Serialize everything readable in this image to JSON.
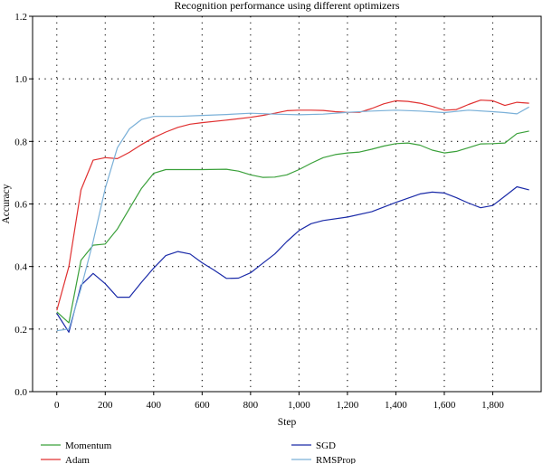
{
  "chart_data": {
    "type": "line",
    "title": "Recognition performance using different optimizers",
    "xlabel": "Step",
    "ylabel": "Accuracy",
    "xlim": [
      -100,
      2000
    ],
    "ylim": [
      0,
      1.2
    ],
    "xticks": [
      0,
      200,
      400,
      600,
      800,
      1000,
      1200,
      1400,
      1600,
      1800
    ],
    "xtick_labels": [
      "0",
      "200",
      "400",
      "600",
      "800",
      "1,000",
      "1,200",
      "1,400",
      "1,600",
      "1,800"
    ],
    "yticks": [
      0,
      0.2,
      0.4,
      0.6,
      0.8,
      1.0,
      1.2
    ],
    "ytick_labels": [
      "0.0",
      "0.2",
      "0.4",
      "0.6",
      "0.8",
      "1.0",
      "1.2"
    ],
    "grid": true,
    "legend_position": "bottom",
    "series": [
      {
        "name": "Momentum",
        "color": "#3aa03a",
        "x": [
          0,
          50,
          100,
          150,
          200,
          250,
          300,
          350,
          400,
          450,
          500,
          600,
          700,
          750,
          800,
          850,
          900,
          950,
          1000,
          1050,
          1100,
          1150,
          1200,
          1250,
          1300,
          1350,
          1400,
          1450,
          1500,
          1550,
          1600,
          1650,
          1700,
          1750,
          1800,
          1850,
          1900,
          1950
        ],
        "y": [
          0.255,
          0.22,
          0.42,
          0.468,
          0.472,
          0.52,
          0.585,
          0.65,
          0.698,
          0.71,
          0.71,
          0.71,
          0.711,
          0.705,
          0.693,
          0.685,
          0.686,
          0.693,
          0.71,
          0.73,
          0.748,
          0.758,
          0.763,
          0.766,
          0.775,
          0.785,
          0.793,
          0.795,
          0.788,
          0.772,
          0.763,
          0.768,
          0.78,
          0.792,
          0.793,
          0.795,
          0.825,
          0.833
        ]
      },
      {
        "name": "Adam",
        "color": "#e03030",
        "x": [
          0,
          50,
          100,
          150,
          200,
          250,
          300,
          350,
          400,
          450,
          500,
          550,
          600,
          700,
          800,
          850,
          900,
          950,
          1000,
          1050,
          1100,
          1150,
          1200,
          1250,
          1300,
          1350,
          1400,
          1450,
          1500,
          1550,
          1600,
          1650,
          1700,
          1750,
          1800,
          1850,
          1900,
          1950
        ],
        "y": [
          0.26,
          0.4,
          0.645,
          0.74,
          0.748,
          0.745,
          0.765,
          0.79,
          0.812,
          0.83,
          0.845,
          0.855,
          0.86,
          0.868,
          0.877,
          0.883,
          0.89,
          0.898,
          0.9,
          0.9,
          0.899,
          0.895,
          0.893,
          0.893,
          0.905,
          0.92,
          0.93,
          0.928,
          0.922,
          0.912,
          0.9,
          0.902,
          0.918,
          0.932,
          0.93,
          0.915,
          0.925,
          0.922
        ]
      },
      {
        "name": "SGD",
        "color": "#1a2aa8",
        "x": [
          0,
          50,
          100,
          150,
          200,
          250,
          300,
          350,
          400,
          450,
          500,
          550,
          600,
          650,
          700,
          750,
          800,
          850,
          900,
          950,
          1000,
          1050,
          1100,
          1200,
          1300,
          1400,
          1500,
          1550,
          1600,
          1650,
          1700,
          1750,
          1800,
          1850,
          1900,
          1950
        ],
        "y": [
          0.25,
          0.19,
          0.34,
          0.378,
          0.345,
          0.302,
          0.302,
          0.35,
          0.395,
          0.435,
          0.448,
          0.44,
          0.412,
          0.388,
          0.362,
          0.363,
          0.38,
          0.41,
          0.44,
          0.48,
          0.515,
          0.537,
          0.547,
          0.558,
          0.575,
          0.605,
          0.632,
          0.638,
          0.635,
          0.62,
          0.603,
          0.588,
          0.595,
          0.625,
          0.655,
          0.645
        ]
      },
      {
        "name": "RMSProp",
        "color": "#7ab0d8",
        "x": [
          0,
          50,
          100,
          150,
          200,
          250,
          300,
          350,
          400,
          500,
          600,
          700,
          800,
          900,
          1000,
          1100,
          1200,
          1300,
          1400,
          1500,
          1600,
          1700,
          1800,
          1850,
          1900,
          1950
        ],
        "y": [
          0.195,
          0.2,
          0.33,
          0.48,
          0.65,
          0.78,
          0.84,
          0.87,
          0.88,
          0.88,
          0.883,
          0.886,
          0.89,
          0.887,
          0.885,
          0.887,
          0.893,
          0.897,
          0.9,
          0.897,
          0.892,
          0.9,
          0.895,
          0.892,
          0.888,
          0.91
        ]
      }
    ]
  }
}
